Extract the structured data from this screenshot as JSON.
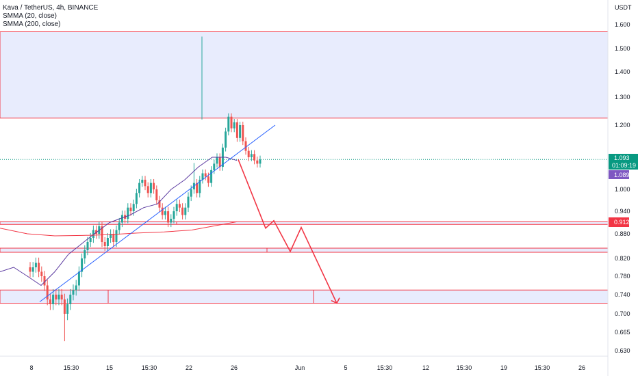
{
  "legend": {
    "title": "Kava / TetherUS, 4h, BINANCE",
    "ind1": "SMMA (20, close)",
    "ind2": "SMMA (200, close)"
  },
  "currency": "USDT",
  "price_levels": [
    {
      "v": 1.6,
      "label": "1.600"
    },
    {
      "v": 1.5,
      "label": "1.500"
    },
    {
      "v": 1.4,
      "label": "1.400"
    },
    {
      "v": 1.3,
      "label": "1.300"
    },
    {
      "v": 1.2,
      "label": "1.200"
    },
    {
      "v": 1.0,
      "label": "1.000"
    },
    {
      "v": 0.94,
      "label": "0.940"
    },
    {
      "v": 0.88,
      "label": "0.880"
    },
    {
      "v": 0.82,
      "label": "0.820"
    },
    {
      "v": 0.78,
      "label": "0.780"
    },
    {
      "v": 0.74,
      "label": "0.740"
    },
    {
      "v": 0.7,
      "label": "0.700"
    },
    {
      "v": 0.665,
      "label": "0.665"
    },
    {
      "v": 0.63,
      "label": "0.630"
    }
  ],
  "time_labels": [
    "8",
    "15:30",
    "15",
    "15:30",
    "22",
    "26",
    "Jun",
    "5",
    "15:30",
    "12",
    "15:30",
    "19",
    "15:30",
    "26"
  ],
  "tags": {
    "last_price": "1.093",
    "countdown": "01:09:19",
    "smma20": "1.089",
    "level": "0.912"
  },
  "colors": {
    "up": "#26a69a",
    "down": "#ef5350",
    "zone_fill": "#e8ecfd",
    "zone_border": "#f23645",
    "trend": "#2962ff",
    "smma20": "#5b3aa0",
    "smma200": "#f23645",
    "last_price": "#089981",
    "smma_tag": "#7e57c2",
    "level_tag": "#f23645"
  },
  "chart_data": {
    "type": "candlestick",
    "symbol": "Kava / TetherUS",
    "interval": "4h",
    "exchange": "BINANCE",
    "y_unit": "USDT",
    "last_price": 1.093,
    "zones": [
      [
        1.225,
        1.57
      ],
      [
        0.905,
        0.912
      ],
      [
        0.835,
        0.845
      ],
      [
        0.722,
        0.75
      ]
    ],
    "projection": [
      [
        1.093,
        "now"
      ],
      [
        0.895,
        "down"
      ],
      [
        0.915,
        "up"
      ],
      [
        0.837,
        "down"
      ],
      [
        0.897,
        "up"
      ],
      [
        0.722,
        "down"
      ]
    ]
  }
}
